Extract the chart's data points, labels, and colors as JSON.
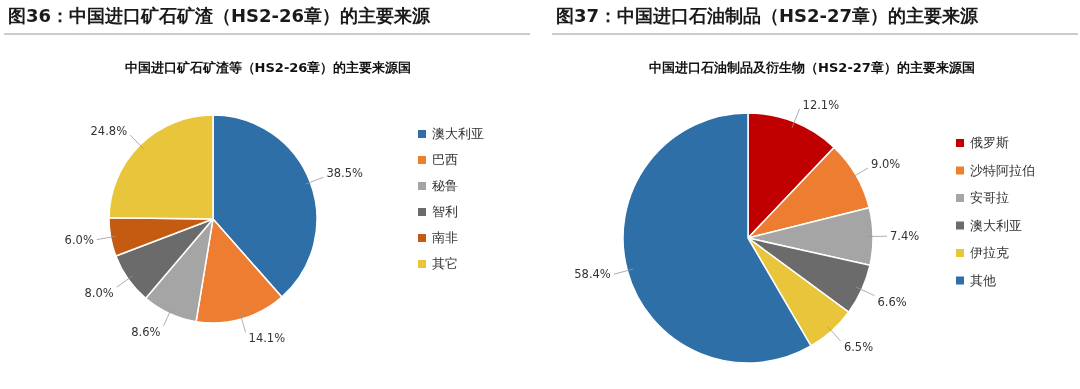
{
  "chart_data": [
    {
      "type": "pie",
      "title": "图36：中国进口矿石矿渣（HS2-26章）的主要来源",
      "subtitle": "中国进口矿石矿渣等（HS2-26章）的主要来源国",
      "categories": [
        "澳大利亚",
        "巴西",
        "秘鲁",
        "智利",
        "南非",
        "其它"
      ],
      "values": [
        38.5,
        14.1,
        8.6,
        8.0,
        6.0,
        24.8
      ],
      "value_labels": [
        "38.5%",
        "14.1%",
        "8.6%",
        "8.0%",
        "6.0%",
        "24.8%"
      ],
      "colors": [
        "#2e6fa8",
        "#ed7d31",
        "#a5a5a5",
        "#6b6b6b",
        "#c55a11",
        "#e8c53a"
      ],
      "legend": "right"
    },
    {
      "type": "pie",
      "title": "图37：中国进口石油制品（HS2-27章）的主要来源",
      "subtitle": "中国进口石油制品及衍生物（HS2-27章）的主要来源国",
      "categories": [
        "俄罗斯",
        "沙特阿拉伯",
        "安哥拉",
        "澳大利亚",
        "伊拉克",
        "其他"
      ],
      "values": [
        12.1,
        9.0,
        7.4,
        6.6,
        6.5,
        58.4
      ],
      "value_labels": [
        "12.1%",
        "9.0%",
        "7.4%",
        "6.6%",
        "6.5%",
        "58.4%"
      ],
      "colors": [
        "#c00000",
        "#ed7d31",
        "#a5a5a5",
        "#6b6b6b",
        "#e8c53a",
        "#2e6fa8"
      ],
      "legend": "right"
    }
  ]
}
